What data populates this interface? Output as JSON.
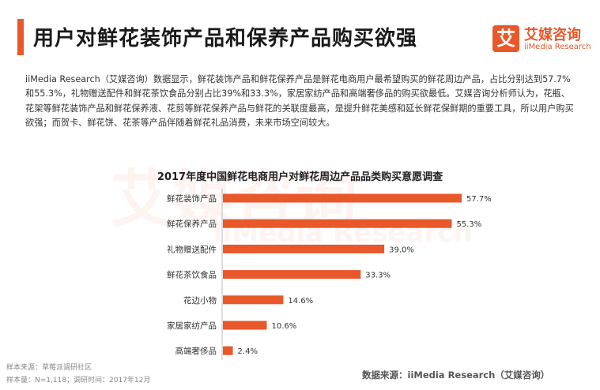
{
  "header": {
    "title": "用户对鲜花装饰产品和保养产品购买欲强"
  },
  "logo": {
    "mark": "艾",
    "cn": "艾媒咨询",
    "en": "iiMedia Research"
  },
  "body": {
    "paragraph": "iiMedia Research（艾媒咨询）数据显示，鲜花装饰产品和鲜花保养产品是鲜花电商用户最希望购买的鲜花周边产品，占比分别达到57.7%和55.3%，礼物赠送配件和鲜花茶饮食品分别占比39%和33.3%，家居家纺产品和高端奢侈品的购买欲最低。艾媒咨询分析师认为，花瓶、花架等鲜花装饰产品和鲜花保养液、花剪等鲜花保养产品与鲜花的关联度最高，是提升鲜花美感和延长鲜花保鲜期的重要工具，所以用户购买欲强；而贺卡、鲜花饼、花茶等产品伴随着鲜花礼品消费，未来市场空间较大。"
  },
  "watermark": {
    "cn": "艾媒咨询",
    "en": "iiMedia Research"
  },
  "chart_data": {
    "type": "bar",
    "orientation": "horizontal",
    "title": "2017年度中国鲜花电商用户对鲜花周边产品品类购买意愿调查",
    "categories": [
      "鲜花装饰产品",
      "鲜花保养产品",
      "礼物赠送配件",
      "鲜花茶饮食品",
      "花边小物",
      "家居家纺产品",
      "高端奢侈品"
    ],
    "values": [
      57.7,
      55.3,
      39.0,
      33.3,
      14.6,
      10.6,
      2.4
    ],
    "labels": [
      "57.7%",
      "55.3%",
      "39.0%",
      "33.3%",
      "14.6%",
      "10.6%",
      "2.4%"
    ],
    "xlabel": "",
    "ylabel": "",
    "xlim": [
      0,
      60
    ],
    "grid": false,
    "legend": "none",
    "bar_color": "#e8582a"
  },
  "footer": {
    "sample_source": "样本来源：草莓派调研社区",
    "sample_note": "样本量：N=1,118；调研时间：2017年12月",
    "data_source": "数据来源：iiMedia Research（艾媒咨询）"
  }
}
